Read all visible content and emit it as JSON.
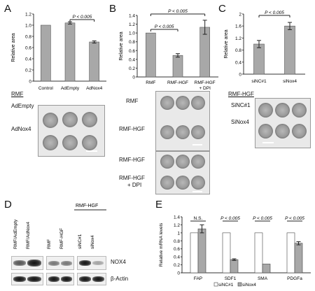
{
  "panels": {
    "A": {
      "letter": "A"
    },
    "B": {
      "letter": "B"
    },
    "C": {
      "letter": "C"
    },
    "D": {
      "letter": "D"
    },
    "E": {
      "letter": "E"
    }
  },
  "chart_data": [
    {
      "panel": "A",
      "type": "bar",
      "categories": [
        "Control",
        "AdEmpty",
        "AdNox4"
      ],
      "values": [
        1.0,
        1.04,
        0.7
      ],
      "errors": [
        0,
        0.02,
        0.02
      ],
      "ylabel": "Relative area",
      "ylim": [
        0,
        1.2
      ],
      "yticks": [
        "0",
        "0.2",
        "0.4",
        "0.6",
        "0.8",
        "1.0",
        "1.2"
      ],
      "significance": [
        {
          "label": "P < 0.005",
          "from": 1,
          "to": 2
        }
      ],
      "grid": false
    },
    {
      "panel": "B",
      "type": "bar",
      "categories": [
        "RMF",
        "RMF-HGF",
        "RMF-HGF + DPI"
      ],
      "categories_line1": [
        "RMF",
        "RMF-HGF",
        "RMF-HGF"
      ],
      "categories_line2": [
        "",
        "",
        "+ DPI"
      ],
      "values": [
        1.0,
        0.49,
        1.13
      ],
      "errors": [
        0,
        0.04,
        0.16
      ],
      "ylabel": "Relative area",
      "ylim": [
        0,
        1.4
      ],
      "yticks": [
        "0",
        "0.2",
        "0.4",
        "0.6",
        "0.8",
        "1.0",
        "1.2",
        "1.4"
      ],
      "significance": [
        {
          "label": "P < 0.005",
          "from": 0,
          "to": 1
        },
        {
          "label": "P < 0.005",
          "from": 1,
          "to": 2
        }
      ],
      "grid": false
    },
    {
      "panel": "C",
      "type": "bar",
      "categories": [
        "siNC#1",
        "siNox4"
      ],
      "values": [
        1.0,
        1.6
      ],
      "errors": [
        0.12,
        0.12
      ],
      "ylabel": "Relative area",
      "ylim": [
        0,
        2.0
      ],
      "yticks": [
        "0",
        "0.4",
        "0.8",
        "1.2",
        "1.6",
        "2"
      ],
      "significance": [
        {
          "label": "P < 0.005",
          "from": 0,
          "to": 1
        }
      ],
      "grid": false
    },
    {
      "panel": "E",
      "type": "bar",
      "categories": [
        "FAP",
        "SDF1",
        "SMA",
        "PDGFa"
      ],
      "series": [
        {
          "name": "siNC#1",
          "values": [
            1.0,
            1.0,
            1.0,
            1.0
          ],
          "errors": [
            0,
            0,
            0,
            0
          ],
          "color": "#ffffff"
        },
        {
          "name": "siNox4",
          "values": [
            1.1,
            0.33,
            0.22,
            0.74
          ],
          "errors": [
            0.1,
            0.02,
            0,
            0.04
          ],
          "color": "#a8a8a8"
        }
      ],
      "ylabel": "Relative mRNA levels",
      "ylim": [
        0,
        1.4
      ],
      "yticks": [
        "0",
        "0.2",
        "0.4",
        "0.6",
        "0.8",
        "1",
        "1.2",
        "1.4"
      ],
      "significance": [
        "N.S.",
        "P < 0.005",
        "P < 0.005",
        "P < 0.005"
      ],
      "legend": "bottom",
      "grid": false
    }
  ],
  "photoA": {
    "title": "RMF",
    "rows": [
      "AdEmpty",
      "AdNox4"
    ]
  },
  "photoB": {
    "row1": "RMF",
    "row2": "RMF-HGF",
    "row3": "RMF-HGF",
    "row4a": "RMF-HGF",
    "row4b": "+ DPI"
  },
  "photoC": {
    "title": "RMF-HGF",
    "rows": [
      "SiNC#1",
      "SiNox4"
    ]
  },
  "blotD": {
    "lanes": [
      "RMF/AdEmpty",
      "RMF/AdNox4",
      "RMF",
      "RMF-HGF",
      "siNC#1",
      "siNox4"
    ],
    "group_title": "RMF-HGF",
    "rows": [
      "NOX4",
      "β-Actin"
    ]
  }
}
